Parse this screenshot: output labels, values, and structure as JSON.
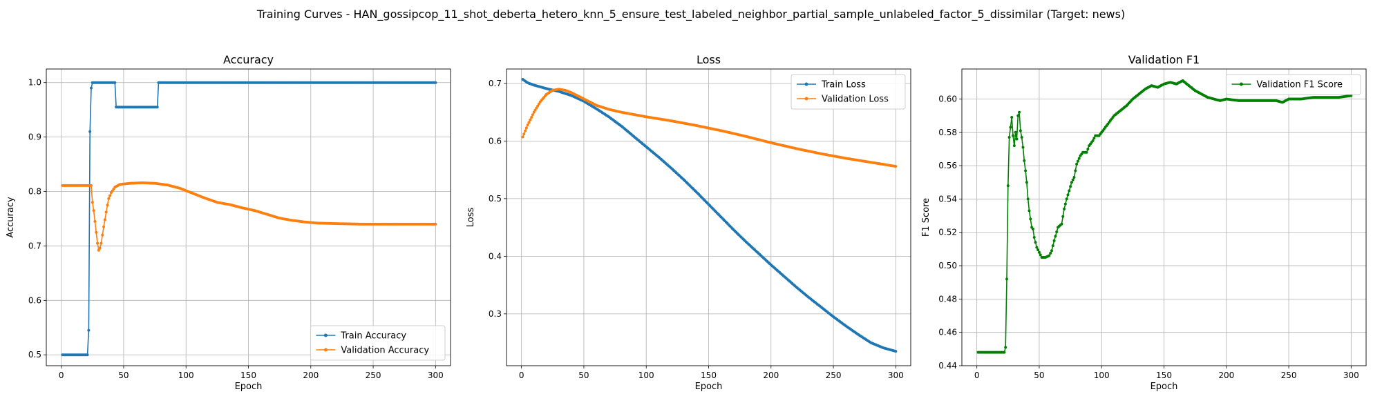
{
  "figure": {
    "suptitle": "Training Curves - HAN_gossipcop_11_shot_deberta_hetero_knn_5_ensure_test_labeled_neighbor_partial_sample_unlabeled_factor_5_dissimilar (Target: news)"
  },
  "chart_data": [
    {
      "type": "line",
      "title": "Accuracy",
      "xlabel": "Epoch",
      "ylabel": "Accuracy",
      "xlim": [
        -12,
        312
      ],
      "ylim": [
        0.48,
        1.025
      ],
      "xticks": [
        0,
        50,
        100,
        150,
        200,
        250,
        300
      ],
      "yticks": [
        0.5,
        0.6,
        0.7,
        0.8,
        0.9,
        1.0
      ],
      "grid": true,
      "legend_position": "lower-right",
      "series": [
        {
          "name": "Train Accuracy",
          "color": "#1f77b4",
          "points": [
            [
              1,
              0.5
            ],
            [
              21,
              0.5
            ],
            [
              22,
              0.545
            ],
            [
              23,
              0.91
            ],
            [
              24,
              0.99
            ],
            [
              25,
              1.0
            ],
            [
              43,
              1.0
            ],
            [
              44,
              0.955
            ],
            [
              77,
              0.955
            ],
            [
              78,
              1.0
            ],
            [
              300,
              1.0
            ]
          ]
        },
        {
          "name": "Validation Accuracy",
          "color": "#ff7f0e",
          "points": [
            [
              1,
              0.811
            ],
            [
              24,
              0.811
            ],
            [
              25,
              0.78
            ],
            [
              26,
              0.765
            ],
            [
              27,
              0.745
            ],
            [
              28,
              0.725
            ],
            [
              29,
              0.705
            ],
            [
              30,
              0.692
            ],
            [
              31,
              0.696
            ],
            [
              32,
              0.705
            ],
            [
              33,
              0.72
            ],
            [
              34,
              0.735
            ],
            [
              35,
              0.748
            ],
            [
              36,
              0.762
            ],
            [
              37,
              0.775
            ],
            [
              38,
              0.787
            ],
            [
              40,
              0.798
            ],
            [
              43,
              0.808
            ],
            [
              47,
              0.813
            ],
            [
              55,
              0.815
            ],
            [
              65,
              0.816
            ],
            [
              75,
              0.815
            ],
            [
              85,
              0.812
            ],
            [
              95,
              0.806
            ],
            [
              105,
              0.797
            ],
            [
              115,
              0.788
            ],
            [
              125,
              0.78
            ],
            [
              135,
              0.776
            ],
            [
              145,
              0.77
            ],
            [
              155,
              0.765
            ],
            [
              165,
              0.758
            ],
            [
              175,
              0.751
            ],
            [
              185,
              0.747
            ],
            [
              195,
              0.744
            ],
            [
              205,
              0.742
            ],
            [
              220,
              0.741
            ],
            [
              240,
              0.74
            ],
            [
              300,
              0.74
            ]
          ]
        }
      ]
    },
    {
      "type": "line",
      "title": "Loss",
      "xlabel": "Epoch",
      "ylabel": "Loss",
      "xlim": [
        -12,
        312
      ],
      "ylim": [
        0.21,
        0.725
      ],
      "xticks": [
        0,
        50,
        100,
        150,
        200,
        250,
        300
      ],
      "yticks": [
        0.3,
        0.4,
        0.5,
        0.6,
        0.7
      ],
      "grid": true,
      "legend_position": "top-right",
      "series": [
        {
          "name": "Train Loss",
          "color": "#1f77b4",
          "points": [
            [
              1,
              0.707
            ],
            [
              5,
              0.701
            ],
            [
              10,
              0.697
            ],
            [
              20,
              0.691
            ],
            [
              30,
              0.686
            ],
            [
              40,
              0.679
            ],
            [
              50,
              0.669
            ],
            [
              60,
              0.656
            ],
            [
              70,
              0.642
            ],
            [
              80,
              0.626
            ],
            [
              90,
              0.608
            ],
            [
              100,
              0.59
            ],
            [
              110,
              0.572
            ],
            [
              120,
              0.553
            ],
            [
              130,
              0.533
            ],
            [
              140,
              0.512
            ],
            [
              150,
              0.49
            ],
            [
              160,
              0.468
            ],
            [
              170,
              0.446
            ],
            [
              180,
              0.425
            ],
            [
              190,
              0.405
            ],
            [
              200,
              0.385
            ],
            [
              210,
              0.366
            ],
            [
              220,
              0.347
            ],
            [
              230,
              0.329
            ],
            [
              240,
              0.312
            ],
            [
              250,
              0.295
            ],
            [
              260,
              0.279
            ],
            [
              270,
              0.264
            ],
            [
              280,
              0.25
            ],
            [
              290,
              0.241
            ],
            [
              300,
              0.235
            ]
          ]
        },
        {
          "name": "Validation Loss",
          "color": "#ff7f0e",
          "points": [
            [
              1,
              0.607
            ],
            [
              5,
              0.628
            ],
            [
              10,
              0.65
            ],
            [
              15,
              0.668
            ],
            [
              20,
              0.681
            ],
            [
              25,
              0.688
            ],
            [
              30,
              0.69
            ],
            [
              35,
              0.688
            ],
            [
              40,
              0.684
            ],
            [
              50,
              0.673
            ],
            [
              60,
              0.662
            ],
            [
              70,
              0.655
            ],
            [
              80,
              0.65
            ],
            [
              100,
              0.642
            ],
            [
              120,
              0.635
            ],
            [
              140,
              0.627
            ],
            [
              160,
              0.618
            ],
            [
              180,
              0.608
            ],
            [
              200,
              0.597
            ],
            [
              220,
              0.587
            ],
            [
              240,
              0.578
            ],
            [
              260,
              0.57
            ],
            [
              280,
              0.563
            ],
            [
              300,
              0.556
            ]
          ]
        }
      ]
    },
    {
      "type": "line",
      "title": "Validation F1",
      "xlabel": "Epoch",
      "ylabel": "F1 Score",
      "xlim": [
        -12,
        312
      ],
      "ylim": [
        0.44,
        0.618
      ],
      "xticks": [
        0,
        50,
        100,
        150,
        200,
        250,
        300
      ],
      "yticks": [
        0.44,
        0.46,
        0.48,
        0.5,
        0.52,
        0.54,
        0.56,
        0.58,
        0.6
      ],
      "grid": true,
      "legend_position": "top-right",
      "series": [
        {
          "name": "Validation F1 Score",
          "color": "#008000",
          "points": [
            [
              1,
              0.448
            ],
            [
              22,
              0.448
            ],
            [
              23,
              0.451
            ],
            [
              24,
              0.492
            ],
            [
              25,
              0.548
            ],
            [
              26,
              0.577
            ],
            [
              27,
              0.583
            ],
            [
              28,
              0.589
            ],
            [
              29,
              0.578
            ],
            [
              30,
              0.572
            ],
            [
              31,
              0.58
            ],
            [
              32,
              0.576
            ],
            [
              33,
              0.59
            ],
            [
              34,
              0.592
            ],
            [
              35,
              0.581
            ],
            [
              36,
              0.577
            ],
            [
              37,
              0.571
            ],
            [
              38,
              0.563
            ],
            [
              39,
              0.557
            ],
            [
              40,
              0.55
            ],
            [
              41,
              0.54
            ],
            [
              42,
              0.533
            ],
            [
              43,
              0.528
            ],
            [
              44,
              0.523
            ],
            [
              45,
              0.522
            ],
            [
              46,
              0.517
            ],
            [
              47,
              0.514
            ],
            [
              48,
              0.511
            ],
            [
              50,
              0.508
            ],
            [
              52,
              0.505
            ],
            [
              55,
              0.505
            ],
            [
              58,
              0.506
            ],
            [
              60,
              0.509
            ],
            [
              62,
              0.515
            ],
            [
              65,
              0.523
            ],
            [
              68,
              0.525
            ],
            [
              70,
              0.534
            ],
            [
              72,
              0.54
            ],
            [
              74,
              0.545
            ],
            [
              76,
              0.55
            ],
            [
              78,
              0.553
            ],
            [
              80,
              0.561
            ],
            [
              83,
              0.566
            ],
            [
              85,
              0.568
            ],
            [
              88,
              0.568
            ],
            [
              90,
              0.572
            ],
            [
              93,
              0.575
            ],
            [
              95,
              0.578
            ],
            [
              98,
              0.578
            ],
            [
              100,
              0.58
            ],
            [
              105,
              0.585
            ],
            [
              110,
              0.59
            ],
            [
              115,
              0.593
            ],
            [
              120,
              0.596
            ],
            [
              125,
              0.6
            ],
            [
              130,
              0.603
            ],
            [
              135,
              0.606
            ],
            [
              140,
              0.608
            ],
            [
              145,
              0.607
            ],
            [
              150,
              0.609
            ],
            [
              155,
              0.61
            ],
            [
              160,
              0.609
            ],
            [
              165,
              0.611
            ],
            [
              170,
              0.608
            ],
            [
              175,
              0.605
            ],
            [
              180,
              0.603
            ],
            [
              185,
              0.601
            ],
            [
              190,
              0.6
            ],
            [
              195,
              0.599
            ],
            [
              200,
              0.6
            ],
            [
              210,
              0.599
            ],
            [
              220,
              0.599
            ],
            [
              230,
              0.599
            ],
            [
              240,
              0.599
            ],
            [
              245,
              0.598
            ],
            [
              250,
              0.6
            ],
            [
              260,
              0.6
            ],
            [
              270,
              0.601
            ],
            [
              280,
              0.601
            ],
            [
              290,
              0.601
            ],
            [
              300,
              0.602
            ]
          ]
        }
      ]
    }
  ]
}
